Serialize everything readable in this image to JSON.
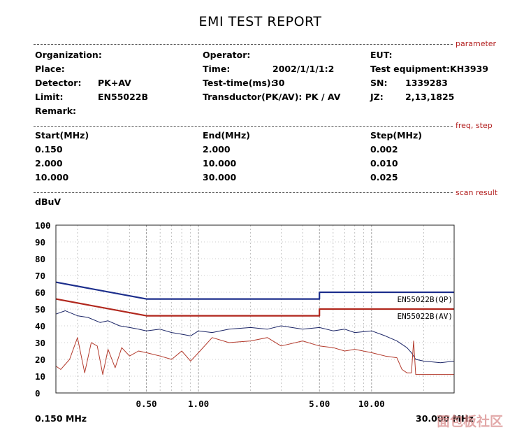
{
  "title": "EMI TEST REPORT",
  "sections": {
    "parameter": "parameter",
    "freq_step": "freq, step",
    "scan_result": "scan result"
  },
  "params": {
    "organization_label": "Organization:",
    "place_label": "Place:",
    "detector_label": "Detector:",
    "detector_value": "PK+AV",
    "limit_label": "Limit:",
    "limit_value": "EN55022B",
    "remark_label": "Remark:",
    "operator_label": "Operator:",
    "time_label": "Time:",
    "time_value": "2002/1/1/1:2",
    "testtime_label": "Test-time(ms):",
    "testtime_value": "30",
    "transductor_label": "Transductor(PK/AV): PK  /  AV",
    "eut_label": "EUT:",
    "equipment_label": "Test equipment:KH3939",
    "sn_label": "SN:",
    "sn_value": "1339283",
    "jz_label": "JZ:",
    "jz_value": "2,13,1825"
  },
  "freq_table": {
    "headers": [
      "Start(MHz)",
      "End(MHz)",
      "Step(MHz)"
    ],
    "rows": [
      [
        "0.150",
        "2.000",
        "0.002"
      ],
      [
        "2.000",
        "10.000",
        "0.010"
      ],
      [
        "10.000",
        "30.000",
        "0.025"
      ]
    ]
  },
  "watermark_text": "面包板社区",
  "colors": {
    "limit_qp": "#1c2e8c",
    "limit_av": "#b1271d",
    "trace_pk": "#1a2466",
    "trace_av": "#b33a2c",
    "grid": "#9a9a9a",
    "section_tag": "#b21e1e"
  },
  "chart_data": {
    "type": "line",
    "ylabel": "dBuV",
    "ylim": [
      0,
      100
    ],
    "y_ticks": [
      "0",
      "10",
      "20",
      "30",
      "40",
      "50",
      "60",
      "70",
      "80",
      "90",
      "100"
    ],
    "xscale": "log",
    "xlim": [
      0.15,
      30
    ],
    "x_tick_labels": [
      {
        "value": 0.5,
        "label": "0.50"
      },
      {
        "value": 1,
        "label": "1.00"
      },
      {
        "value": 5,
        "label": "5.00"
      },
      {
        "value": 10,
        "label": "10.00"
      }
    ],
    "x_start_label": "0.150 MHz",
    "x_end_label": "30.000 MHz",
    "series": [
      {
        "name": "EN55022B(QP)",
        "role": "limit",
        "x": [
          0.15,
          0.5,
          0.5,
          5.0,
          5.0,
          30
        ],
        "y": [
          66,
          56,
          56,
          56,
          60,
          60
        ]
      },
      {
        "name": "EN55022B(AV)",
        "role": "limit",
        "x": [
          0.15,
          0.5,
          0.5,
          5.0,
          5.0,
          30
        ],
        "y": [
          56,
          46,
          46,
          46,
          50,
          50
        ]
      },
      {
        "role": "measurement-peak",
        "x": [
          0.15,
          0.17,
          0.2,
          0.23,
          0.27,
          0.3,
          0.35,
          0.4,
          0.45,
          0.5,
          0.6,
          0.7,
          0.8,
          0.9,
          1.0,
          1.2,
          1.5,
          2.0,
          2.5,
          3.0,
          4.0,
          5.0,
          6.0,
          7.0,
          8.0,
          10.0,
          12.0,
          14.0,
          16.0,
          17.0,
          18.0,
          20.0,
          25.0,
          30.0
        ],
        "y": [
          47,
          49,
          46,
          45,
          42,
          43,
          40,
          39,
          38,
          37,
          38,
          36,
          35,
          34,
          37,
          36,
          38,
          39,
          38,
          40,
          38,
          39,
          37,
          38,
          36,
          37,
          34,
          31,
          27,
          24,
          20,
          19,
          18,
          19
        ]
      },
      {
        "role": "measurement-average",
        "x": [
          0.15,
          0.16,
          0.18,
          0.2,
          0.22,
          0.24,
          0.26,
          0.28,
          0.3,
          0.33,
          0.36,
          0.4,
          0.45,
          0.5,
          0.6,
          0.7,
          0.8,
          0.9,
          1.0,
          1.2,
          1.5,
          2.0,
          2.5,
          3.0,
          4.0,
          5.0,
          6.0,
          7.0,
          8.0,
          10.0,
          12.0,
          14.0,
          15.0,
          16.0,
          17.0,
          17.5,
          18.0,
          20.0,
          25.0,
          30.0
        ],
        "y": [
          16,
          14,
          20,
          33,
          12,
          30,
          28,
          11,
          26,
          15,
          27,
          22,
          25,
          24,
          22,
          20,
          25,
          19,
          24,
          33,
          30,
          31,
          33,
          28,
          31,
          28,
          27,
          25,
          26,
          24,
          22,
          21,
          14,
          12,
          12,
          31,
          11,
          11,
          11,
          11
        ]
      }
    ]
  }
}
